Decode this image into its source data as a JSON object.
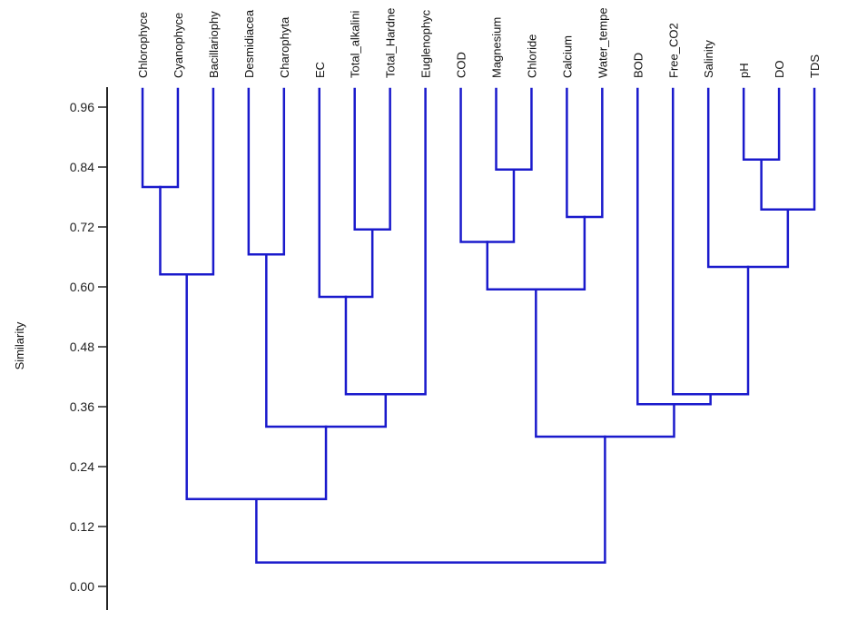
{
  "chart_data": {
    "type": "dendrogram",
    "title": "",
    "ylabel": "Similarity",
    "ylim": [
      0.0,
      1.0
    ],
    "yticks": [
      "0.00",
      "0.12",
      "0.24",
      "0.36",
      "0.48",
      "0.60",
      "0.72",
      "0.84",
      "0.96"
    ],
    "yticks_values": [
      0.0,
      0.12,
      0.24,
      0.36,
      0.48,
      0.6,
      0.72,
      0.84,
      0.96
    ],
    "line_color": "#1a1acc",
    "axis_color": "#222222",
    "leaves": [
      "Chlorophyce",
      "Cyanophyce",
      "Bacillariophy",
      "Desmidiacea",
      "Charophyta",
      "EC",
      "Total_alkalini",
      "Total_Hardne",
      "Euglenophyc",
      "COD",
      "Magnesium",
      "Chloride",
      "Calcium",
      "Water_tempe",
      "BOD",
      "Free_CO2",
      "Salinity",
      "pH",
      "DO",
      "TDS"
    ],
    "merges": [
      {
        "left": "L0",
        "right": "L1",
        "similarity": 0.8
      },
      {
        "left": "M0",
        "right": "L2",
        "similarity": 0.625
      },
      {
        "left": "L3",
        "right": "L4",
        "similarity": 0.665
      },
      {
        "left": "L6",
        "right": "L7",
        "similarity": 0.715
      },
      {
        "left": "L5",
        "right": "M3",
        "similarity": 0.58
      },
      {
        "left": "M4",
        "right": "L8",
        "similarity": 0.385
      },
      {
        "left": "M2",
        "right": "M5",
        "similarity": 0.32
      },
      {
        "left": "M1",
        "right": "M6",
        "similarity": 0.175
      },
      {
        "left": "L10",
        "right": "L11",
        "similarity": 0.835
      },
      {
        "left": "L9",
        "right": "M8",
        "similarity": 0.69
      },
      {
        "left": "L12",
        "right": "L13",
        "similarity": 0.74
      },
      {
        "left": "M9",
        "right": "M10",
        "similarity": 0.595
      },
      {
        "left": "L17",
        "right": "L18",
        "similarity": 0.855
      },
      {
        "left": "M12",
        "right": "L19",
        "similarity": 0.755
      },
      {
        "left": "L16",
        "right": "M13",
        "similarity": 0.64
      },
      {
        "left": "L15",
        "right": "M14",
        "similarity": 0.385
      },
      {
        "left": "L14",
        "right": "M15",
        "similarity": 0.365
      },
      {
        "left": "M11",
        "right": "M16",
        "similarity": 0.3
      },
      {
        "left": "M7",
        "right": "M17",
        "similarity": 0.048
      }
    ]
  }
}
